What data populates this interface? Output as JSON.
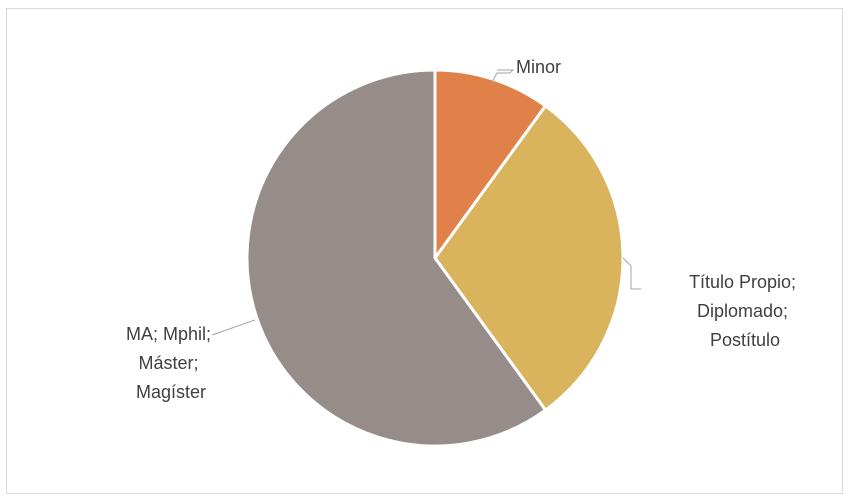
{
  "chart_data": {
    "type": "pie",
    "title": "",
    "categories": [
      "Minor",
      "Título Propio; Diplomado; Postítulo",
      "MA; Mphil; Máster; Magíster"
    ],
    "values": [
      10,
      30,
      60
    ],
    "colors": [
      "#DF8148",
      "#D9B45C",
      "#968C8A"
    ],
    "labels": [
      {
        "lines": [
          "Minor"
        ]
      },
      {
        "lines": [
          "Título Propio;",
          "Diplomado;",
          "Postítulo"
        ]
      },
      {
        "lines": [
          "MA; Mphil;",
          "Máster;",
          "Magíster"
        ]
      }
    ],
    "legend": "none",
    "data_labels": "category name, outside with leader lines"
  }
}
